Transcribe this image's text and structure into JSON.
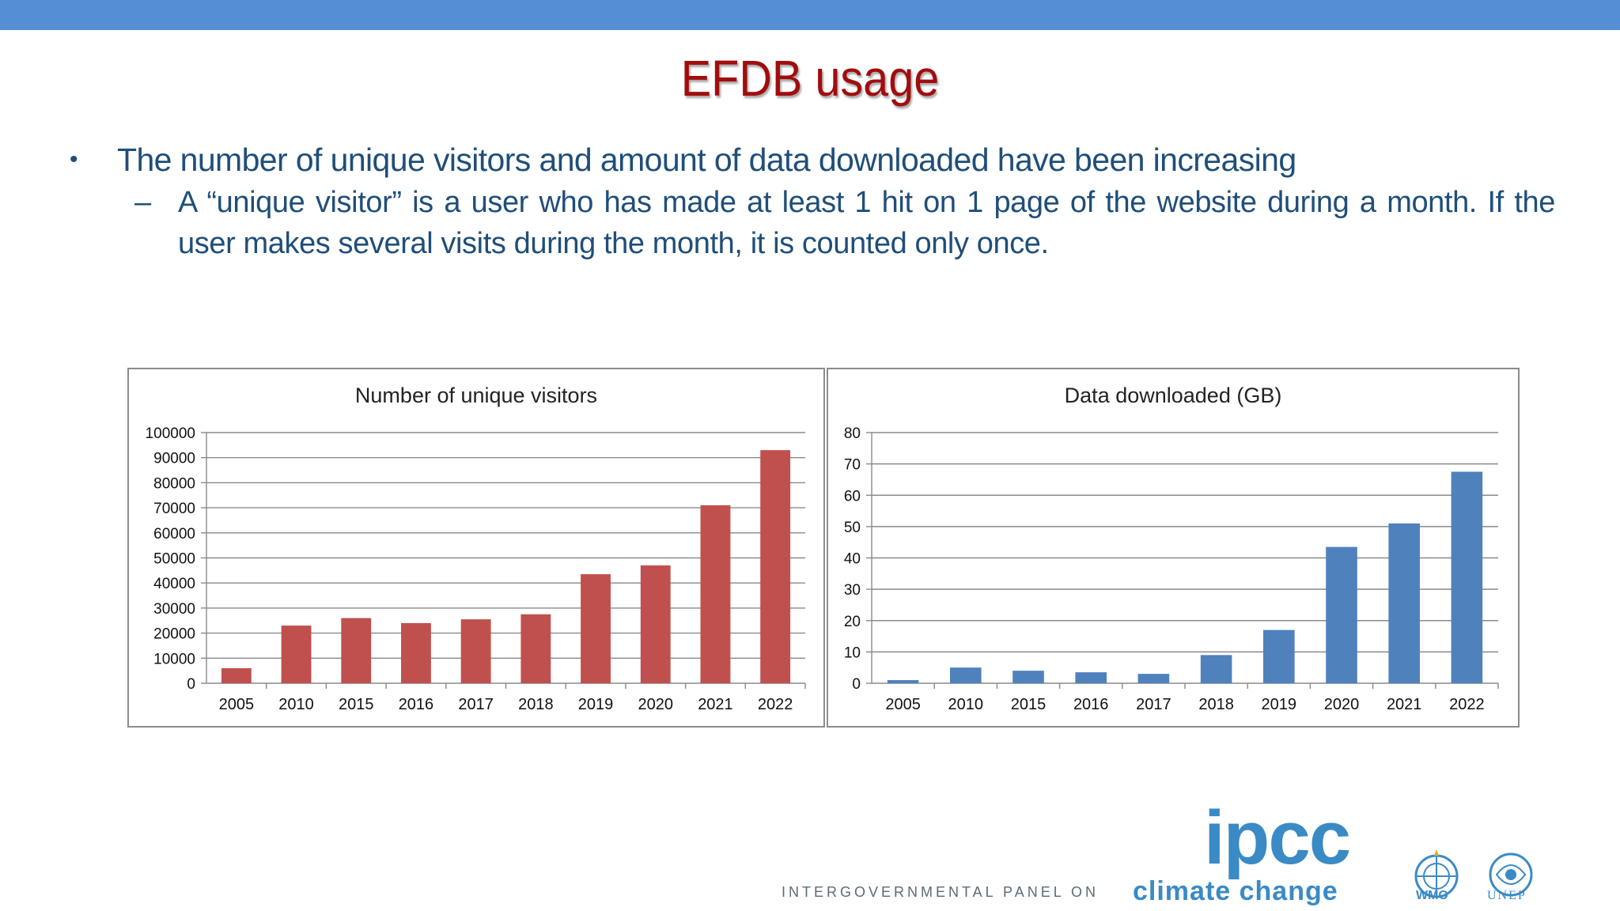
{
  "slide": {
    "title": "EFDB usage",
    "bullet_main": "The number of unique visitors and amount of data downloaded have been increasing",
    "bullet_sub": "A “unique visitor” is a user who has made at least 1 hit on 1 page of the website during a month. If the user makes several visits during the month, it is counted only once.",
    "bullet_marker": "•",
    "sub_marker": "–"
  },
  "colors": {
    "bar_visitors": "#c0504d",
    "bar_data": "#4f81bd",
    "title": "#a10d0d",
    "text": "#1f4e79",
    "accent": "#558ed5"
  },
  "chart_data": [
    {
      "type": "bar",
      "title": "Number of unique visitors",
      "categories": [
        "2005",
        "2010",
        "2015",
        "2016",
        "2017",
        "2018",
        "2019",
        "2020",
        "2021",
        "2022"
      ],
      "values": [
        6000,
        23000,
        26000,
        24000,
        25500,
        27500,
        43500,
        47000,
        71000,
        93000
      ],
      "ylim": [
        0,
        100000
      ],
      "yticks": [
        0,
        10000,
        20000,
        30000,
        40000,
        50000,
        60000,
        70000,
        80000,
        90000,
        100000
      ],
      "xlabel": "",
      "ylabel": "",
      "grid": true,
      "legend": "none"
    },
    {
      "type": "bar",
      "title": "Data downloaded (GB)",
      "categories": [
        "2005",
        "2010",
        "2015",
        "2016",
        "2017",
        "2018",
        "2019",
        "2020",
        "2021",
        "2022"
      ],
      "values": [
        1,
        5,
        4,
        3.5,
        3,
        9,
        17,
        43.5,
        51,
        67.5
      ],
      "ylim": [
        0,
        80
      ],
      "yticks": [
        0,
        10,
        20,
        30,
        40,
        50,
        60,
        70,
        80
      ],
      "xlabel": "",
      "ylabel": "",
      "grid": true,
      "legend": "none"
    }
  ],
  "footer": {
    "logo_text": "ipcc",
    "tagline": "INTERGOVERNMENTAL PANEL ON",
    "tagline_emphasis": "climate change",
    "wmo_label": "WMO",
    "unep_label": "UNEP"
  }
}
